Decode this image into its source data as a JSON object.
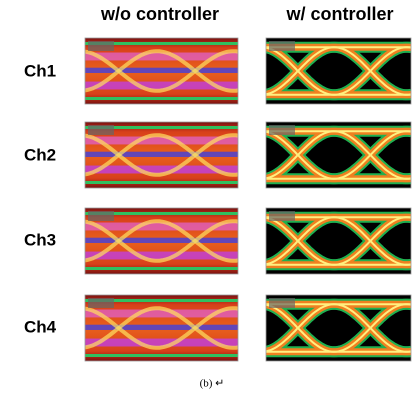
{
  "columns": [
    "w/o controller",
    "w/ controller"
  ],
  "rows": [
    "Ch1",
    "Ch2",
    "Ch3",
    "Ch4"
  ],
  "caption": "(b) ↵"
}
